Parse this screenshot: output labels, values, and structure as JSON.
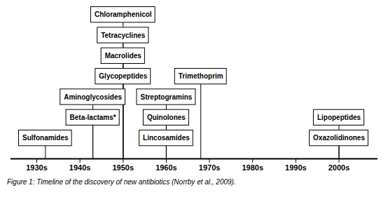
{
  "chart_data": {
    "type": "timeline",
    "title": "Figure 1: Timeline of the discovery of new antibiotics (Norrby et al., 2009).",
    "categories": [
      "Sulfonamides",
      "Aminoglycosides",
      "Beta-lactams*",
      "Chloramphenicol",
      "Tetracyclines",
      "Macrolides",
      "Glycopeptides",
      "Streptogramins",
      "Quinolones",
      "Lincosamides",
      "Trimethoprim",
      "Lipopeptides",
      "Oxazolidinones"
    ],
    "x": [
      1932,
      1943,
      1943,
      1950,
      1950,
      1950,
      1950,
      1960,
      1960,
      1960,
      1968,
      2000,
      2000
    ],
    "xlim": [
      1924,
      2009
    ],
    "xticks": [
      {
        "value": 1930,
        "label": "1930s"
      },
      {
        "value": 1940,
        "label": "1940s"
      },
      {
        "value": 1950,
        "label": "1950s"
      },
      {
        "value": 1960,
        "label": "1960s"
      },
      {
        "value": 1970,
        "label": "1970s"
      },
      {
        "value": 1980,
        "label": "1980s"
      },
      {
        "value": 1990,
        "label": "1990s"
      },
      {
        "value": 2000,
        "label": "2000s"
      }
    ],
    "color": "black"
  }
}
